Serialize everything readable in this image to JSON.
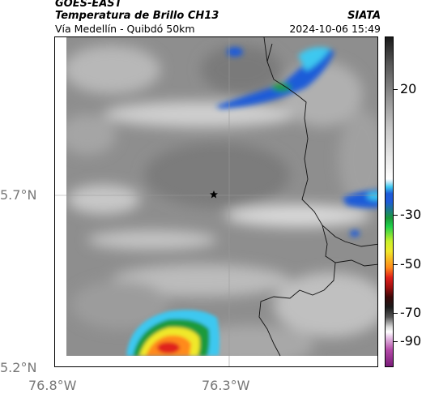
{
  "header": {
    "satellite": "GOES-EAST",
    "product": "Temperatura de Brillo CH13",
    "region": "Vía Medellín - Quibdó 50km",
    "agency": "SIATA",
    "timestamp": "2024-10-06 15:49"
  },
  "map": {
    "latitude_labels": [
      "5.7°N",
      "5.2°N"
    ],
    "longitude_labels": [
      "76.8°W",
      "76.3°W"
    ],
    "marker_icon": "star-icon"
  },
  "colorbar": {
    "ticks": [
      {
        "value": 20,
        "label": "20"
      },
      {
        "value": -30,
        "label": "-30"
      },
      {
        "value": -50,
        "label": "-50"
      },
      {
        "value": -70,
        "label": "-70"
      },
      {
        "value": -90,
        "label": "-90"
      }
    ],
    "colors": {
      "warm_gray": "#9a9a9a",
      "cold_blue": "#1f5bd8",
      "cyan": "#3cc8f0",
      "green": "#1a9a3a",
      "yellow": "#f0e82a",
      "orange": "#ff8a1a",
      "red": "#e0201a",
      "magenta": "#b44aa8"
    }
  }
}
